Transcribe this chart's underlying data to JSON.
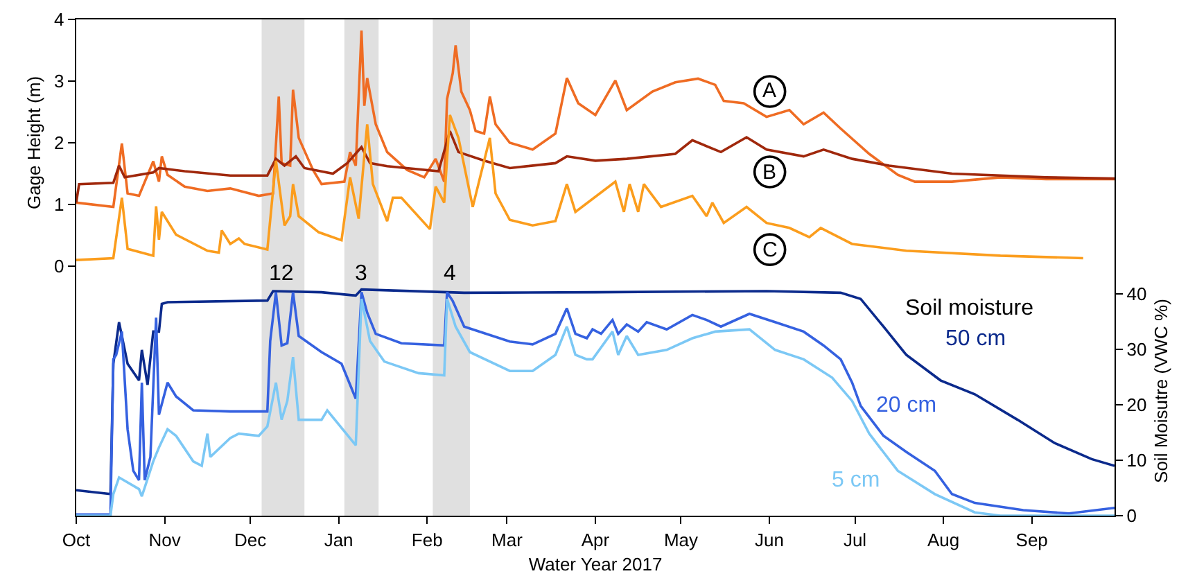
{
  "chart_data": [
    {
      "type": "line",
      "ylabel": "Gage Height (m)",
      "xlim": [
        "2016-10-01",
        "2017-09-30"
      ],
      "ylim": [
        0,
        4
      ],
      "yticks": [
        0,
        1,
        2,
        3,
        4
      ],
      "tick_labels": "y",
      "legend": false,
      "bands": [
        {
          "axis": "x",
          "from": "2016-12-05",
          "to": "2016-12-20",
          "color": "#e0e0e0"
        },
        {
          "axis": "x",
          "from": "2017-01-03",
          "to": "2017-01-15",
          "color": "#e0e0e0"
        },
        {
          "axis": "x",
          "from": "2017-02-03",
          "to": "2017-02-16",
          "color": "#e0e0e0"
        }
      ],
      "series": [
        {
          "name": "A",
          "color": "#ef6c23",
          "x": [
            "2016-10-01",
            "2016-10-14",
            "2016-10-17",
            "2016-10-19",
            "2016-10-23",
            "2016-10-28",
            "2016-10-30",
            "2016-10-31",
            "2016-11-02",
            "2016-11-08",
            "2016-11-16",
            "2016-11-24",
            "2016-12-04",
            "2016-12-09",
            "2016-12-11",
            "2016-12-12",
            "2016-12-15",
            "2016-12-16",
            "2016-12-18",
            "2016-12-23",
            "2016-12-26",
            "2017-01-03",
            "2017-01-05",
            "2017-01-07",
            "2017-01-09",
            "2017-01-10",
            "2017-01-11",
            "2017-01-14",
            "2017-01-18",
            "2017-01-25",
            "2017-01-31",
            "2017-02-04",
            "2017-02-07",
            "2017-02-08",
            "2017-02-10",
            "2017-02-11",
            "2017-02-13",
            "2017-02-16",
            "2017-02-18",
            "2017-02-21",
            "2017-02-23",
            "2017-02-25",
            "2017-03-02",
            "2017-03-10",
            "2017-03-18",
            "2017-03-22",
            "2017-03-26",
            "2017-04-01",
            "2017-04-08",
            "2017-04-12",
            "2017-04-21",
            "2017-04-29",
            "2017-05-07",
            "2017-05-13",
            "2017-05-16",
            "2017-05-23",
            "2017-05-31",
            "2017-06-08",
            "2017-06-13",
            "2017-06-20",
            "2017-06-26",
            "2017-07-06",
            "2017-07-16",
            "2017-07-22",
            "2017-08-04",
            "2017-08-21",
            "2017-09-06",
            "2017-09-22",
            "2017-09-30"
          ],
          "values": [
            1.03,
            0.96,
            1.99,
            1.18,
            1.14,
            1.7,
            1.37,
            1.78,
            1.48,
            1.29,
            1.22,
            1.26,
            1.14,
            1.18,
            2.75,
            1.67,
            1.63,
            2.86,
            2.08,
            1.56,
            1.33,
            1.37,
            1.85,
            1.63,
            3.82,
            2.6,
            3.05,
            2.3,
            1.85,
            1.56,
            1.44,
            1.74,
            1.37,
            2.71,
            3.13,
            3.58,
            2.83,
            2.53,
            2.19,
            2.15,
            2.75,
            2.3,
            2.0,
            1.89,
            2.15,
            3.05,
            2.64,
            2.45,
            3.01,
            2.53,
            2.83,
            2.98,
            3.04,
            2.94,
            2.68,
            2.64,
            2.42,
            2.53,
            2.3,
            2.49,
            2.23,
            1.82,
            1.48,
            1.37,
            1.37,
            1.44,
            1.41,
            1.41,
            1.41
          ]
        },
        {
          "name": "B",
          "color": "#a0280c",
          "x": [
            "2016-10-01",
            "2016-10-02",
            "2016-10-14",
            "2016-10-16",
            "2016-10-18",
            "2016-10-28",
            "2016-10-30",
            "2016-11-08",
            "2016-11-24",
            "2016-12-07",
            "2016-12-10",
            "2016-12-13",
            "2016-12-17",
            "2016-12-20",
            "2016-12-30",
            "2017-01-04",
            "2017-01-09",
            "2017-01-12",
            "2017-01-18",
            "2017-02-05",
            "2017-02-09",
            "2017-02-12",
            "2017-02-21",
            "2017-03-02",
            "2017-03-18",
            "2017-03-22",
            "2017-04-01",
            "2017-04-12",
            "2017-04-29",
            "2017-05-05",
            "2017-05-15",
            "2017-05-24",
            "2017-05-31",
            "2017-06-13",
            "2017-06-20",
            "2017-06-30",
            "2017-07-13",
            "2017-08-04",
            "2017-09-06",
            "2017-09-30"
          ],
          "values": [
            1.03,
            1.33,
            1.35,
            1.63,
            1.44,
            1.52,
            1.59,
            1.54,
            1.47,
            1.47,
            1.74,
            1.63,
            1.78,
            1.59,
            1.5,
            1.67,
            1.93,
            1.67,
            1.62,
            1.54,
            2.19,
            1.85,
            1.71,
            1.59,
            1.67,
            1.78,
            1.71,
            1.74,
            1.82,
            2.04,
            1.85,
            2.09,
            1.89,
            1.78,
            1.89,
            1.74,
            1.63,
            1.5,
            1.44,
            1.42
          ]
        },
        {
          "name": "C",
          "color": "#fb9d1d",
          "x": [
            "2016-10-01",
            "2016-10-14",
            "2016-10-17",
            "2016-10-19",
            "2016-10-28",
            "2016-10-29",
            "2016-10-30",
            "2016-10-31",
            "2016-11-05",
            "2016-11-16",
            "2016-11-20",
            "2016-11-21",
            "2016-11-24",
            "2016-11-27",
            "2016-11-29",
            "2016-12-07",
            "2016-12-10",
            "2016-12-13",
            "2016-12-15",
            "2016-12-16",
            "2016-12-18",
            "2016-12-25",
            "2017-01-02",
            "2017-01-05",
            "2017-01-08",
            "2017-01-11",
            "2017-01-13",
            "2017-01-18",
            "2017-01-20",
            "2017-01-23",
            "2017-02-02",
            "2017-02-04",
            "2017-02-07",
            "2017-02-09",
            "2017-02-12",
            "2017-02-17",
            "2017-02-23",
            "2017-02-25",
            "2017-03-02",
            "2017-03-10",
            "2017-03-18",
            "2017-03-22",
            "2017-03-25",
            "2017-04-08",
            "2017-04-11",
            "2017-04-13",
            "2017-04-16",
            "2017-04-18",
            "2017-04-24",
            "2017-05-05",
            "2017-05-10",
            "2017-05-12",
            "2017-05-16",
            "2017-05-24",
            "2017-05-31",
            "2017-06-08",
            "2017-06-15",
            "2017-06-19",
            "2017-06-30",
            "2017-07-19",
            "2017-08-21",
            "2017-09-19"
          ],
          "values": [
            0.1,
            0.13,
            1.11,
            0.28,
            0.17,
            0.97,
            0.43,
            0.88,
            0.51,
            0.25,
            0.22,
            0.58,
            0.36,
            0.45,
            0.36,
            0.27,
            1.71,
            0.66,
            0.81,
            1.33,
            0.81,
            0.55,
            0.42,
            1.44,
            0.77,
            2.3,
            1.33,
            0.73,
            1.11,
            1.11,
            0.6,
            1.29,
            1.03,
            2.45,
            2.08,
            0.96,
            2.08,
            1.18,
            0.75,
            0.66,
            0.73,
            1.33,
            0.88,
            1.37,
            0.88,
            1.33,
            0.88,
            1.33,
            0.96,
            1.14,
            0.81,
            1.03,
            0.7,
            0.96,
            0.7,
            0.62,
            0.47,
            0.62,
            0.36,
            0.25,
            0.17,
            0.13
          ]
        }
      ]
    },
    {
      "type": "line",
      "xlabel": "Water Year 2017",
      "ylabel": "Soil Moisutre (VWC %)",
      "legend": false,
      "xlim": [
        "2016-10-01",
        "2017-09-30"
      ],
      "xticks": [
        {
          "value": "2016-10-01",
          "label": "Oct"
        },
        {
          "value": "2016-11-01",
          "label": "Nov"
        },
        {
          "value": "2016-12-01",
          "label": "Dec"
        },
        {
          "value": "2017-01-01",
          "label": "Jan"
        },
        {
          "value": "2017-02-01",
          "label": "Feb"
        },
        {
          "value": "2017-03-01",
          "label": "Mar"
        },
        {
          "value": "2017-04-01",
          "label": "Apr"
        },
        {
          "value": "2017-05-01",
          "label": "May"
        },
        {
          "value": "2017-06-01",
          "label": "Jun"
        },
        {
          "value": "2017-07-01",
          "label": "Jul"
        },
        {
          "value": "2017-08-01",
          "label": "Aug"
        },
        {
          "value": "2017-09-01",
          "label": "Sep"
        }
      ],
      "ylim": [
        0,
        45
      ],
      "yticks": [
        0,
        10,
        20,
        30,
        40
      ],
      "annotations": [
        "Soil moisture"
      ],
      "bands": [
        {
          "axis": "x",
          "from": "2016-12-05",
          "to": "2016-12-20",
          "label": "12",
          "color": "#e0e0e0"
        },
        {
          "axis": "x",
          "from": "2017-01-03",
          "to": "2017-01-15",
          "label": "3",
          "color": "#e0e0e0"
        },
        {
          "axis": "x",
          "from": "2017-02-03",
          "to": "2017-02-16",
          "label": "4",
          "color": "#e0e0e0"
        }
      ],
      "series": [
        {
          "name": "50 cm",
          "color": "#0b2a8c",
          "x": [
            "2016-10-01",
            "2016-10-13",
            "2016-10-14",
            "2016-10-16",
            "2016-10-19",
            "2016-10-23",
            "2016-10-24",
            "2016-10-26",
            "2016-10-28",
            "2016-10-30",
            "2016-10-31",
            "2016-11-02",
            "2016-12-07",
            "2016-12-09",
            "2016-12-26",
            "2017-01-07",
            "2017-01-09",
            "2017-02-14",
            "2017-04-01",
            "2017-05-31",
            "2017-06-26",
            "2017-07-03",
            "2017-07-11",
            "2017-07-19",
            "2017-07-31",
            "2017-08-12",
            "2017-08-27",
            "2017-09-09",
            "2017-09-22",
            "2017-09-30"
          ],
          "values": [
            4.6,
            3.9,
            27.4,
            34.9,
            27.4,
            24.4,
            29.9,
            23.6,
            33.2,
            33.2,
            38.2,
            38.5,
            38.8,
            40.5,
            40.3,
            39.7,
            40.8,
            40.2,
            40.3,
            40.5,
            40.2,
            39.1,
            34.1,
            29.0,
            24.4,
            21.9,
            17.3,
            13.1,
            10.2,
            9.0
          ]
        },
        {
          "name": "20 cm",
          "color": "#3561e0",
          "x": [
            "2016-10-01",
            "2016-10-13",
            "2016-10-14",
            "2016-10-15",
            "2016-10-17",
            "2016-10-19",
            "2016-10-21",
            "2016-10-23",
            "2016-10-24",
            "2016-10-25",
            "2016-10-27",
            "2016-10-29",
            "2016-10-30",
            "2016-11-02",
            "2016-11-05",
            "2016-11-11",
            "2016-11-24",
            "2016-12-07",
            "2016-12-08",
            "2016-12-10",
            "2016-12-12",
            "2016-12-14",
            "2016-12-16",
            "2016-12-18",
            "2016-12-26",
            "2017-01-02",
            "2017-01-07",
            "2017-01-09",
            "2017-01-11",
            "2017-01-14",
            "2017-01-23",
            "2017-02-07",
            "2017-02-08",
            "2017-02-10",
            "2017-02-14",
            "2017-03-02",
            "2017-03-10",
            "2017-03-18",
            "2017-03-22",
            "2017-03-25",
            "2017-03-29",
            "2017-03-31",
            "2017-04-03",
            "2017-04-07",
            "2017-04-09",
            "2017-04-12",
            "2017-04-16",
            "2017-04-19",
            "2017-04-26",
            "2017-05-05",
            "2017-05-10",
            "2017-05-15",
            "2017-05-25",
            "2017-06-03",
            "2017-06-13",
            "2017-06-20",
            "2017-06-26",
            "2017-06-30",
            "2017-07-03",
            "2017-07-11",
            "2017-07-19",
            "2017-07-29",
            "2017-08-04",
            "2017-08-12",
            "2017-08-29",
            "2017-09-14",
            "2017-09-30"
          ],
          "values": [
            0.2,
            0.2,
            28.2,
            29.0,
            33.2,
            15.6,
            8.1,
            6.4,
            24.0,
            6.4,
            10.6,
            35.7,
            18.2,
            24.0,
            21.5,
            19.0,
            18.8,
            18.8,
            31.5,
            40.3,
            30.7,
            31.1,
            40.3,
            32.4,
            29.5,
            27.4,
            21.1,
            40.3,
            36.6,
            32.8,
            31.1,
            30.7,
            40.3,
            38.7,
            34.1,
            31.4,
            30.9,
            32.8,
            37.4,
            32.8,
            32.0,
            33.6,
            32.8,
            35.3,
            32.8,
            34.5,
            33.2,
            34.9,
            33.6,
            36.2,
            35.3,
            34.1,
            36.4,
            34.9,
            33.2,
            30.7,
            28.2,
            24.0,
            19.8,
            14.4,
            11.5,
            8.1,
            3.9,
            2.3,
            1.0,
            0.4,
            1.4
          ]
        },
        {
          "name": "5 cm",
          "color": "#7cc8f5",
          "x": [
            "2016-10-01",
            "2016-10-13",
            "2016-10-14",
            "2016-10-16",
            "2016-10-23",
            "2016-10-24",
            "2016-10-28",
            "2016-10-30",
            "2016-11-02",
            "2016-11-05",
            "2016-11-11",
            "2016-11-14",
            "2016-11-16",
            "2016-11-17",
            "2016-11-24",
            "2016-11-27",
            "2016-12-04",
            "2016-12-07",
            "2016-12-10",
            "2016-12-12",
            "2016-12-14",
            "2016-12-16",
            "2016-12-18",
            "2016-12-26",
            "2016-12-28",
            "2017-01-07",
            "2017-01-09",
            "2017-01-12",
            "2017-01-17",
            "2017-01-29",
            "2017-02-07",
            "2017-02-08",
            "2017-02-11",
            "2017-02-16",
            "2017-03-02",
            "2017-03-10",
            "2017-03-18",
            "2017-03-22",
            "2017-03-25",
            "2017-03-29",
            "2017-03-31",
            "2017-04-07",
            "2017-04-09",
            "2017-04-12",
            "2017-04-16",
            "2017-04-26",
            "2017-05-05",
            "2017-05-13",
            "2017-05-25",
            "2017-06-03",
            "2017-06-13",
            "2017-06-23",
            "2017-06-30",
            "2017-07-06",
            "2017-07-16",
            "2017-07-29",
            "2017-08-12",
            "2017-08-21",
            "2017-09-30"
          ],
          "values": [
            0,
            0,
            3.9,
            6.9,
            4.8,
            3.5,
            9.8,
            12.3,
            15.6,
            14.4,
            9.8,
            9.0,
            14.8,
            10.6,
            14.0,
            14.8,
            14.4,
            16.1,
            24.0,
            17.3,
            20.7,
            28.6,
            17.3,
            17.3,
            19.0,
            12.7,
            39.1,
            31.5,
            27.8,
            25.7,
            25.3,
            39.1,
            34.1,
            29.5,
            26.1,
            26.1,
            29.0,
            34.1,
            29.0,
            28.2,
            28.2,
            33.2,
            29.0,
            32.4,
            29.0,
            29.9,
            32.0,
            33.2,
            33.6,
            29.9,
            28.2,
            24.9,
            20.7,
            14.8,
            8.1,
            3.9,
            0.6,
            0,
            0
          ]
        }
      ]
    }
  ]
}
